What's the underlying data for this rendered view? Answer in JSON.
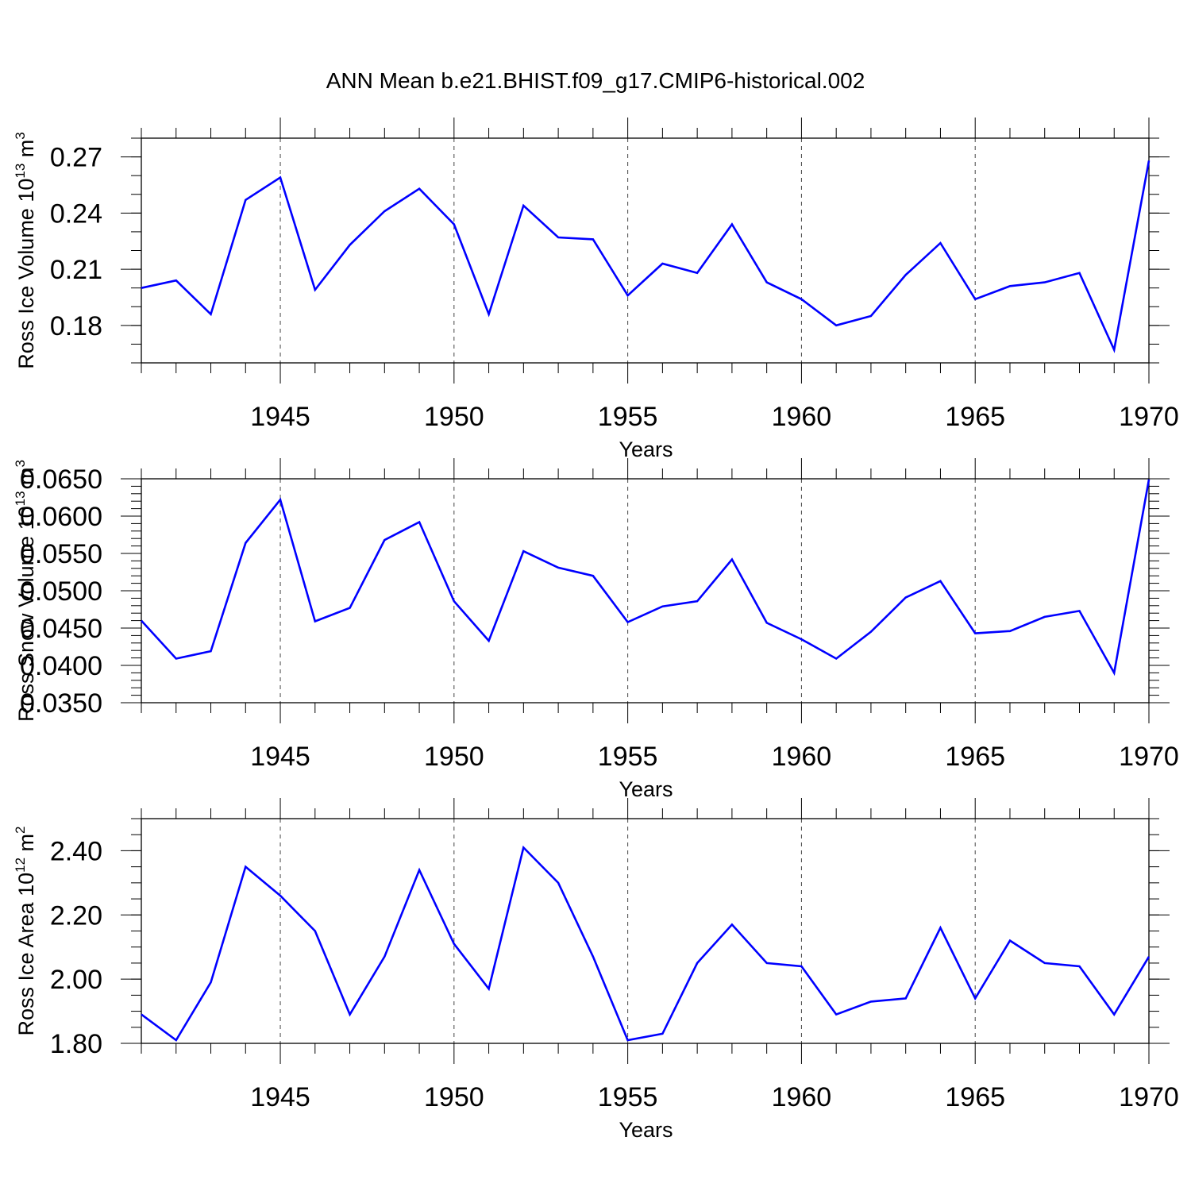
{
  "title": "ANN Mean b.e21.BHIST.f09_g17.CMIP6-historical.002",
  "line_color": "#0000ff",
  "chart_data": [
    {
      "type": "line",
      "ylabel_main": "Ross Ice Volume 10",
      "ylabel_sup": "13",
      "ylabel_unit": "m",
      "ylabel_unit_sup": "3",
      "xlabel": "Years",
      "xlim": [
        1941,
        1970
      ],
      "ylim": [
        0.16,
        0.28
      ],
      "xticks": [
        "1945",
        "1950",
        "1955",
        "1960",
        "1965",
        "1970"
      ],
      "yticks": [
        "0.18",
        "0.21",
        "0.24",
        "0.27"
      ],
      "x": [
        1941,
        1942,
        1943,
        1944,
        1945,
        1946,
        1947,
        1948,
        1949,
        1950,
        1951,
        1952,
        1953,
        1954,
        1955,
        1956,
        1957,
        1958,
        1959,
        1960,
        1961,
        1962,
        1963,
        1964,
        1965,
        1966,
        1967,
        1968,
        1969,
        1970
      ],
      "series": [
        {
          "values": [
            0.2,
            0.204,
            0.186,
            0.247,
            0.259,
            0.199,
            0.223,
            0.241,
            0.253,
            0.234,
            0.186,
            0.244,
            0.227,
            0.226,
            0.196,
            0.213,
            0.208,
            0.234,
            0.203,
            0.194,
            0.18,
            0.185,
            0.207,
            0.224,
            0.194,
            0.201,
            0.203,
            0.208,
            0.167,
            0.268
          ]
        }
      ]
    },
    {
      "type": "line",
      "ylabel_main": "Ross Snow Volume 10",
      "ylabel_sup": "13",
      "ylabel_unit": "m",
      "ylabel_unit_sup": "3",
      "xlabel": "Years",
      "xlim": [
        1941,
        1970
      ],
      "ylim": [
        0.035,
        0.065
      ],
      "xticks": [
        "1945",
        "1950",
        "1955",
        "1960",
        "1965",
        "1970"
      ],
      "yticks": [
        "0.0350",
        "0.0400",
        "0.0450",
        "0.0500",
        "0.0550",
        "0.0600",
        "0.0650"
      ],
      "x": [
        1941,
        1942,
        1943,
        1944,
        1945,
        1946,
        1947,
        1948,
        1949,
        1950,
        1951,
        1952,
        1953,
        1954,
        1955,
        1956,
        1957,
        1958,
        1959,
        1960,
        1961,
        1962,
        1963,
        1964,
        1965,
        1966,
        1967,
        1968,
        1969,
        1970
      ],
      "series": [
        {
          "values": [
            0.046,
            0.0409,
            0.0419,
            0.0564,
            0.0622,
            0.0459,
            0.0477,
            0.0568,
            0.0592,
            0.0486,
            0.0433,
            0.0553,
            0.0531,
            0.052,
            0.0458,
            0.0479,
            0.0486,
            0.0542,
            0.0457,
            0.0435,
            0.0409,
            0.0445,
            0.0491,
            0.0513,
            0.0443,
            0.0446,
            0.0465,
            0.0473,
            0.039,
            0.0649
          ]
        }
      ]
    },
    {
      "type": "line",
      "ylabel_main": "Ross Ice Area 10",
      "ylabel_sup": "12",
      "ylabel_unit": "m",
      "ylabel_unit_sup": "2",
      "xlabel": "Years",
      "xlim": [
        1941,
        1970
      ],
      "ylim": [
        1.8,
        2.5
      ],
      "xticks": [
        "1945",
        "1950",
        "1955",
        "1960",
        "1965",
        "1970"
      ],
      "yticks": [
        "1.80",
        "2.00",
        "2.20",
        "2.40"
      ],
      "x": [
        1941,
        1942,
        1943,
        1944,
        1945,
        1946,
        1947,
        1948,
        1949,
        1950,
        1951,
        1952,
        1953,
        1954,
        1955,
        1956,
        1957,
        1958,
        1959,
        1960,
        1961,
        1962,
        1963,
        1964,
        1965,
        1966,
        1967,
        1968,
        1969,
        1970
      ],
      "series": [
        {
          "values": [
            1.89,
            1.81,
            1.99,
            2.35,
            2.26,
            2.15,
            1.89,
            2.07,
            2.34,
            2.11,
            1.97,
            2.41,
            2.3,
            2.07,
            1.81,
            1.83,
            2.05,
            2.17,
            2.05,
            2.04,
            1.89,
            1.93,
            1.94,
            2.16,
            1.94,
            2.12,
            2.05,
            2.04,
            1.89,
            2.07
          ]
        }
      ]
    }
  ]
}
